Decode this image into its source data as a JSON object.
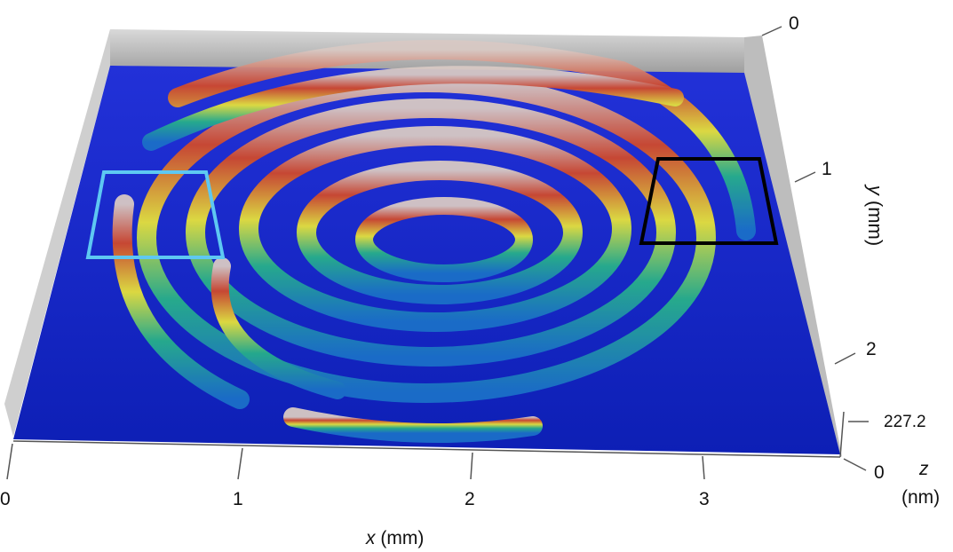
{
  "figure": {
    "x_axis": {
      "var": "x",
      "unit_text": " (mm)",
      "ticks": [
        "0",
        "1",
        "2",
        "3"
      ]
    },
    "y_axis": {
      "var": "y",
      "unit_text": " (mm)",
      "ticks": [
        "0",
        "1",
        "2"
      ]
    },
    "z_axis": {
      "var": "z",
      "unit_text": "(nm)",
      "ticks": [
        "0",
        "227.2"
      ]
    },
    "colors": {
      "substrate": "#1326c8",
      "ridge_low": "#1d8fb8",
      "ridge_mid": "#e8e33a",
      "ridge_high": "#c8412a",
      "peak": "#d8c9c4",
      "box_light_blue": "#5ec8f2",
      "box_black": "#000000"
    }
  }
}
